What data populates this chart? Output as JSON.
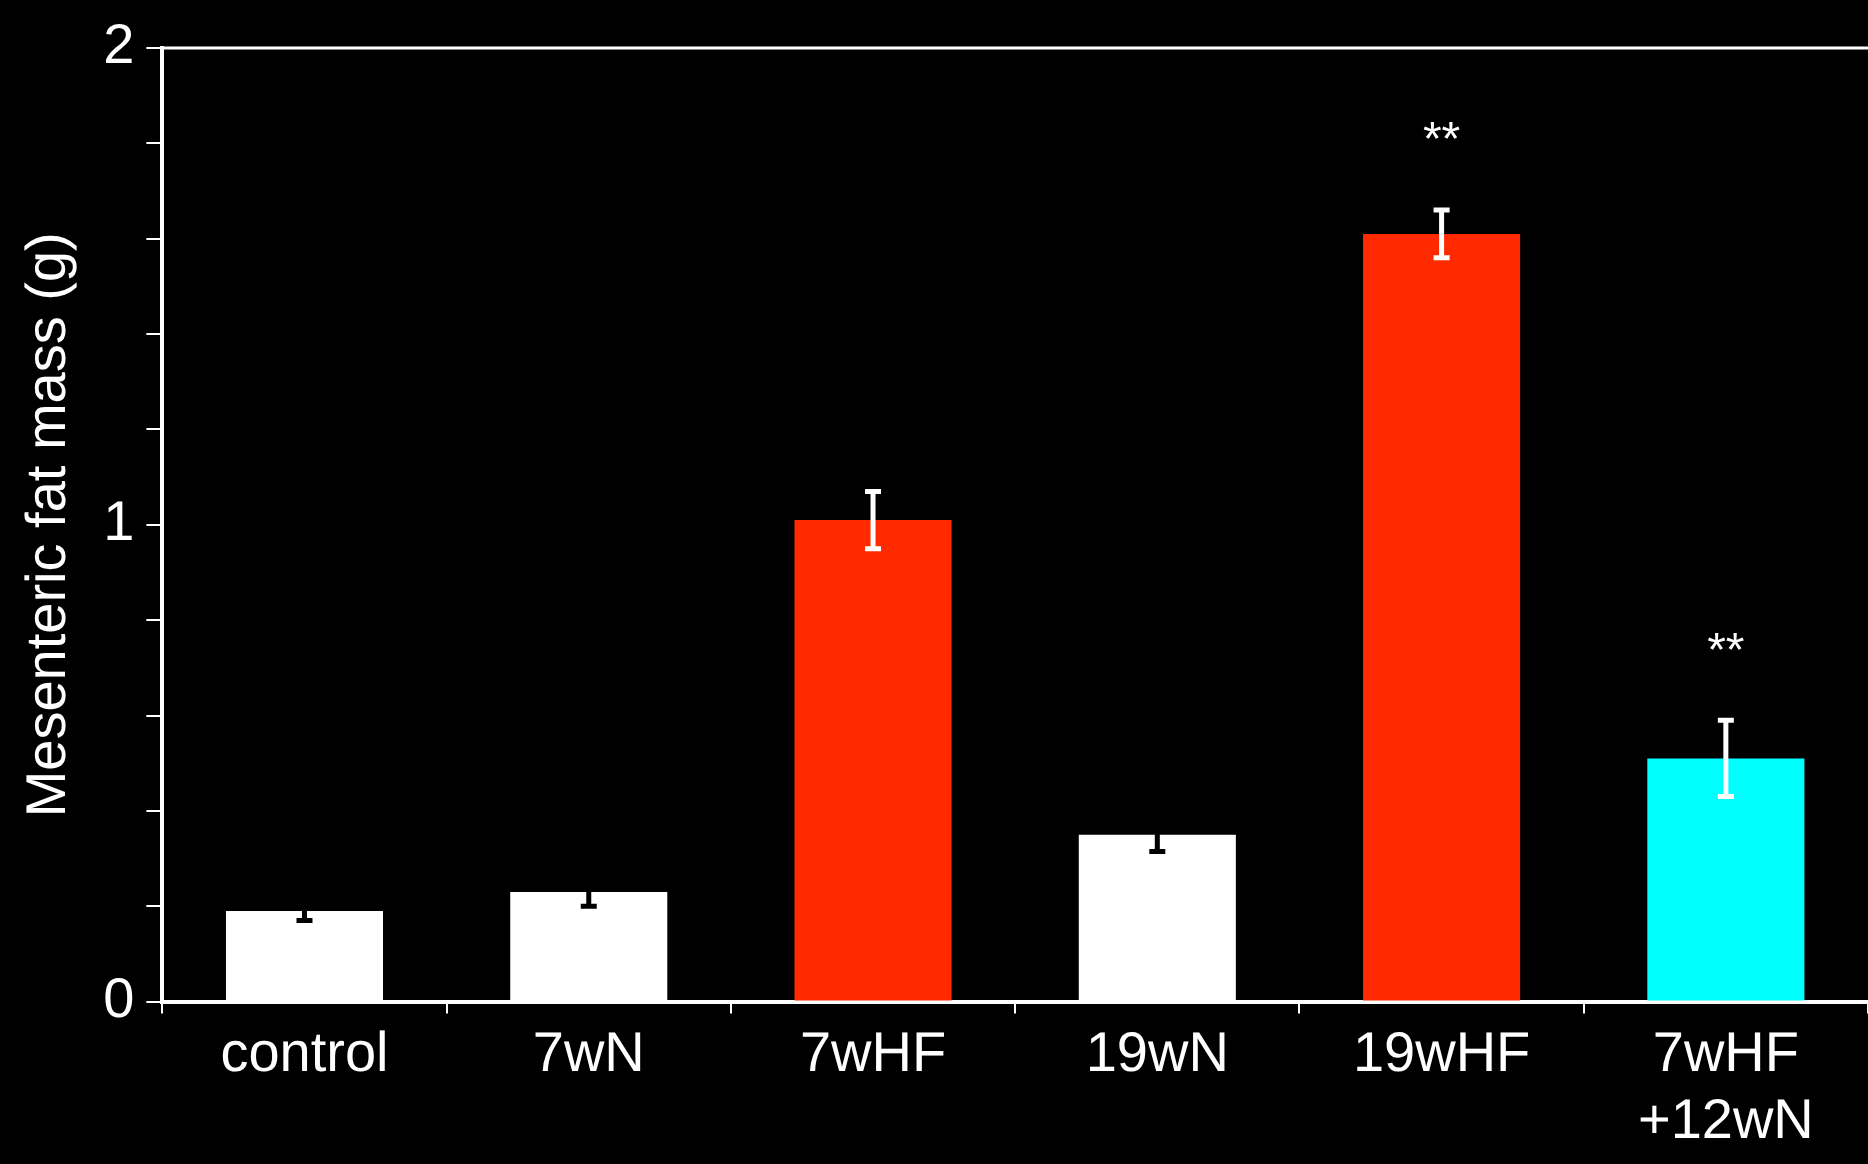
{
  "chart_data": {
    "type": "bar",
    "ylabel": "Mesenteric fat mass (g)",
    "categories": [
      "control",
      "7wN",
      "7wHF",
      "19wN",
      "19wHF",
      "7wHF\n+12wN"
    ],
    "values": [
      0.19,
      0.23,
      1.01,
      0.35,
      1.61,
      0.51
    ],
    "errors": [
      0.02,
      0.03,
      0.06,
      0.035,
      0.05,
      0.08
    ],
    "colors": [
      "#ffffff",
      "#ffffff",
      "#ff2a00",
      "#ffffff",
      "#ff2a00",
      "#00ffff"
    ],
    "ylim": [
      0,
      2
    ],
    "yticks": [
      0,
      {
        "value": 0.2,
        "label": null
      },
      {
        "value": 0.4,
        "label": null
      },
      {
        "value": 0.6,
        "label": null
      },
      {
        "value": 0.8,
        "label": null
      },
      1,
      {
        "value": 1.2,
        "label": null
      },
      {
        "value": 1.4,
        "label": null
      },
      {
        "value": 1.6,
        "label": null
      },
      {
        "value": 1.8,
        "label": null
      },
      2
    ],
    "annotations": [
      "**",
      "**"
    ],
    "grid": false,
    "legend": false
  }
}
